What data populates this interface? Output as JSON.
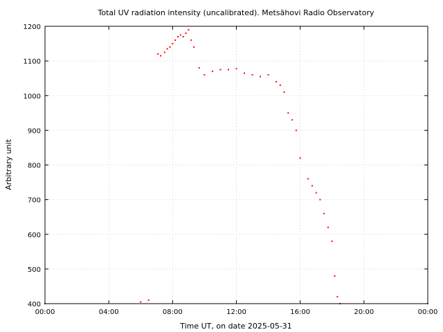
{
  "chart_data": {
    "type": "scatter",
    "title": "Total UV radiation intensity (uncalibrated). Metsähovi Radio Observatory",
    "xlabel": "Time UT, on date 2025-05-31",
    "ylabel": "Arbitrary unit",
    "xlim": [
      "00:00",
      "24:00"
    ],
    "ylim": [
      400,
      1200
    ],
    "grid": true,
    "legend": "none",
    "x_ticks": [
      "00:00",
      "04:00",
      "08:00",
      "12:00",
      "16:00",
      "20:00",
      "00:00"
    ],
    "y_ticks": [
      400,
      500,
      600,
      700,
      800,
      900,
      1000,
      1100,
      1200
    ],
    "series_color": "#ff0000",
    "series": [
      {
        "x": [
          "00:00",
          "06:00",
          "06:30",
          "07:05",
          "07:15",
          "07:30",
          "07:40",
          "07:50",
          "08:00",
          "08:10",
          "08:20",
          "08:30",
          "08:40",
          "08:50",
          "09:00",
          "09:10",
          "09:20",
          "09:40",
          "10:00",
          "10:30",
          "11:00",
          "11:30",
          "12:00",
          "12:30",
          "13:00",
          "13:30",
          "14:00",
          "14:30",
          "14:45",
          "15:00",
          "15:15",
          "15:30",
          "15:45",
          "16:00",
          "16:30",
          "16:45",
          "17:00",
          "17:15",
          "17:30",
          "17:45",
          "18:00",
          "18:10",
          "18:20",
          "18:30",
          "24:00"
        ],
        "y": [
          400,
          405,
          410,
          1120,
          1115,
          1125,
          1135,
          1140,
          1150,
          1160,
          1170,
          1175,
          1170,
          1180,
          1190,
          1160,
          1140,
          1080,
          1060,
          1070,
          1075,
          1075,
          1078,
          1065,
          1060,
          1055,
          1060,
          1040,
          1030,
          1010,
          950,
          930,
          900,
          820,
          760,
          740,
          720,
          700,
          660,
          620,
          580,
          480,
          420,
          400,
          400
        ]
      }
    ]
  }
}
